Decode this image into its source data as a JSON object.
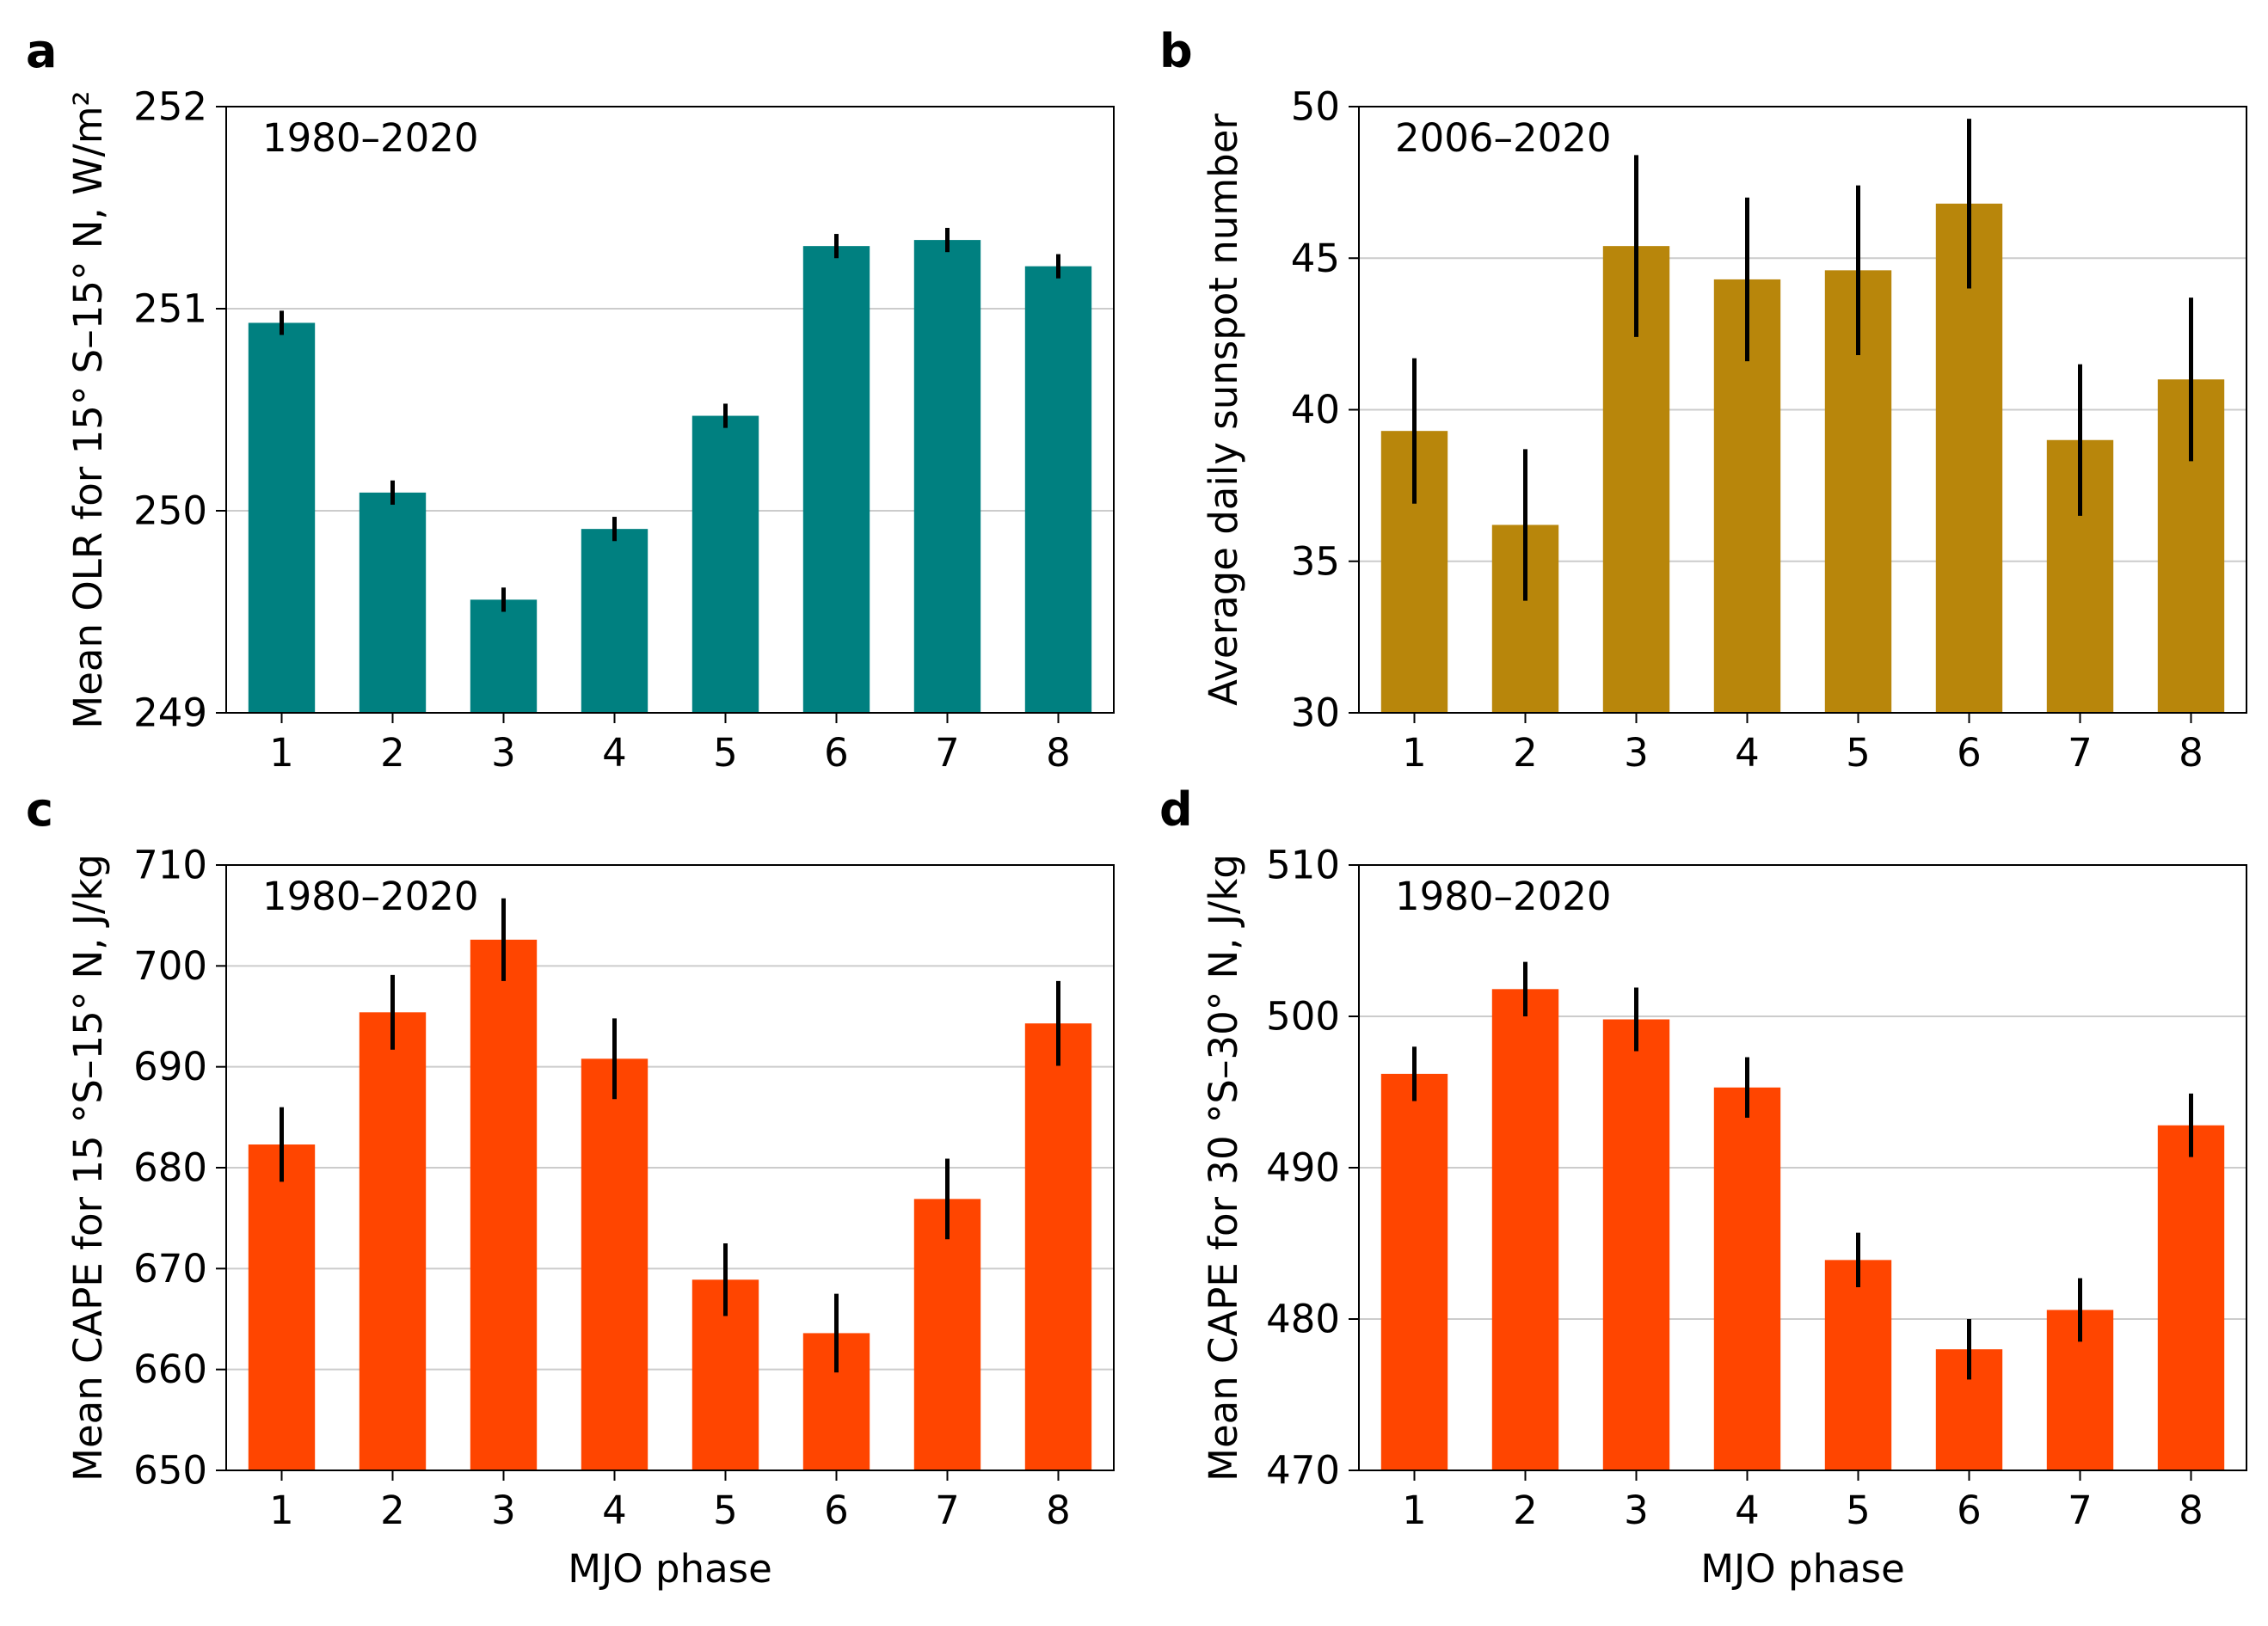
{
  "chart_data": [
    {
      "panel": "a",
      "type": "bar",
      "period": "1980–2020",
      "title": "",
      "xlabel": "",
      "ylabel": "Mean OLR for 15° S–15° N, W/m²",
      "categories": [
        "1",
        "2",
        "3",
        "4",
        "5",
        "6",
        "7",
        "8"
      ],
      "values": [
        250.93,
        250.09,
        249.56,
        249.91,
        250.47,
        251.31,
        251.34,
        251.21
      ],
      "errors": [
        0.06,
        0.06,
        0.06,
        0.06,
        0.06,
        0.06,
        0.06,
        0.06
      ],
      "ylim": [
        249,
        252
      ],
      "yticks": [
        "249",
        "250",
        "251",
        "252"
      ],
      "grid": "horizontal",
      "color": "#008080"
    },
    {
      "panel": "b",
      "type": "bar",
      "period": "2006–2020",
      "title": "",
      "xlabel": "",
      "ylabel": "Average daily sunspot number",
      "categories": [
        "1",
        "2",
        "3",
        "4",
        "5",
        "6",
        "7",
        "8"
      ],
      "values": [
        39.3,
        36.2,
        45.4,
        44.3,
        44.6,
        46.8,
        39.0,
        41.0
      ],
      "errors": [
        2.4,
        2.5,
        3.0,
        2.7,
        2.8,
        2.8,
        2.5,
        2.7
      ],
      "ylim": [
        30,
        50
      ],
      "yticks": [
        "30",
        "35",
        "40",
        "45",
        "50"
      ],
      "grid": "horizontal",
      "color": "#B8860B"
    },
    {
      "panel": "c",
      "type": "bar",
      "period": "1980–2020",
      "title": "",
      "xlabel": "MJO phase",
      "ylabel": "Mean CAPE for 15 °S–15° N, J/kg",
      "categories": [
        "1",
        "2",
        "3",
        "4",
        "5",
        "6",
        "7",
        "8"
      ],
      "values": [
        682.3,
        695.4,
        702.6,
        690.8,
        668.9,
        663.6,
        676.9,
        694.3
      ],
      "errors": [
        3.7,
        3.7,
        4.1,
        4.0,
        3.6,
        3.9,
        4.0,
        4.2
      ],
      "ylim": [
        650,
        710
      ],
      "yticks": [
        "650",
        "660",
        "670",
        "680",
        "690",
        "700",
        "710"
      ],
      "grid": "horizontal",
      "color": "#FF4500"
    },
    {
      "panel": "d",
      "type": "bar",
      "period": "1980–2020",
      "title": "",
      "xlabel": "MJO phase",
      "ylabel": "Mean CAPE for 30 °S–30° N, J/kg",
      "categories": [
        "1",
        "2",
        "3",
        "4",
        "5",
        "6",
        "7",
        "8"
      ],
      "values": [
        496.2,
        501.8,
        499.8,
        495.3,
        483.9,
        478.0,
        480.6,
        492.8
      ],
      "errors": [
        1.8,
        1.8,
        2.1,
        2.0,
        1.8,
        2.0,
        2.1,
        2.1
      ],
      "ylim": [
        470,
        510
      ],
      "yticks": [
        "470",
        "480",
        "490",
        "500",
        "510"
      ],
      "grid": "horizontal",
      "color": "#FF4500"
    }
  ]
}
